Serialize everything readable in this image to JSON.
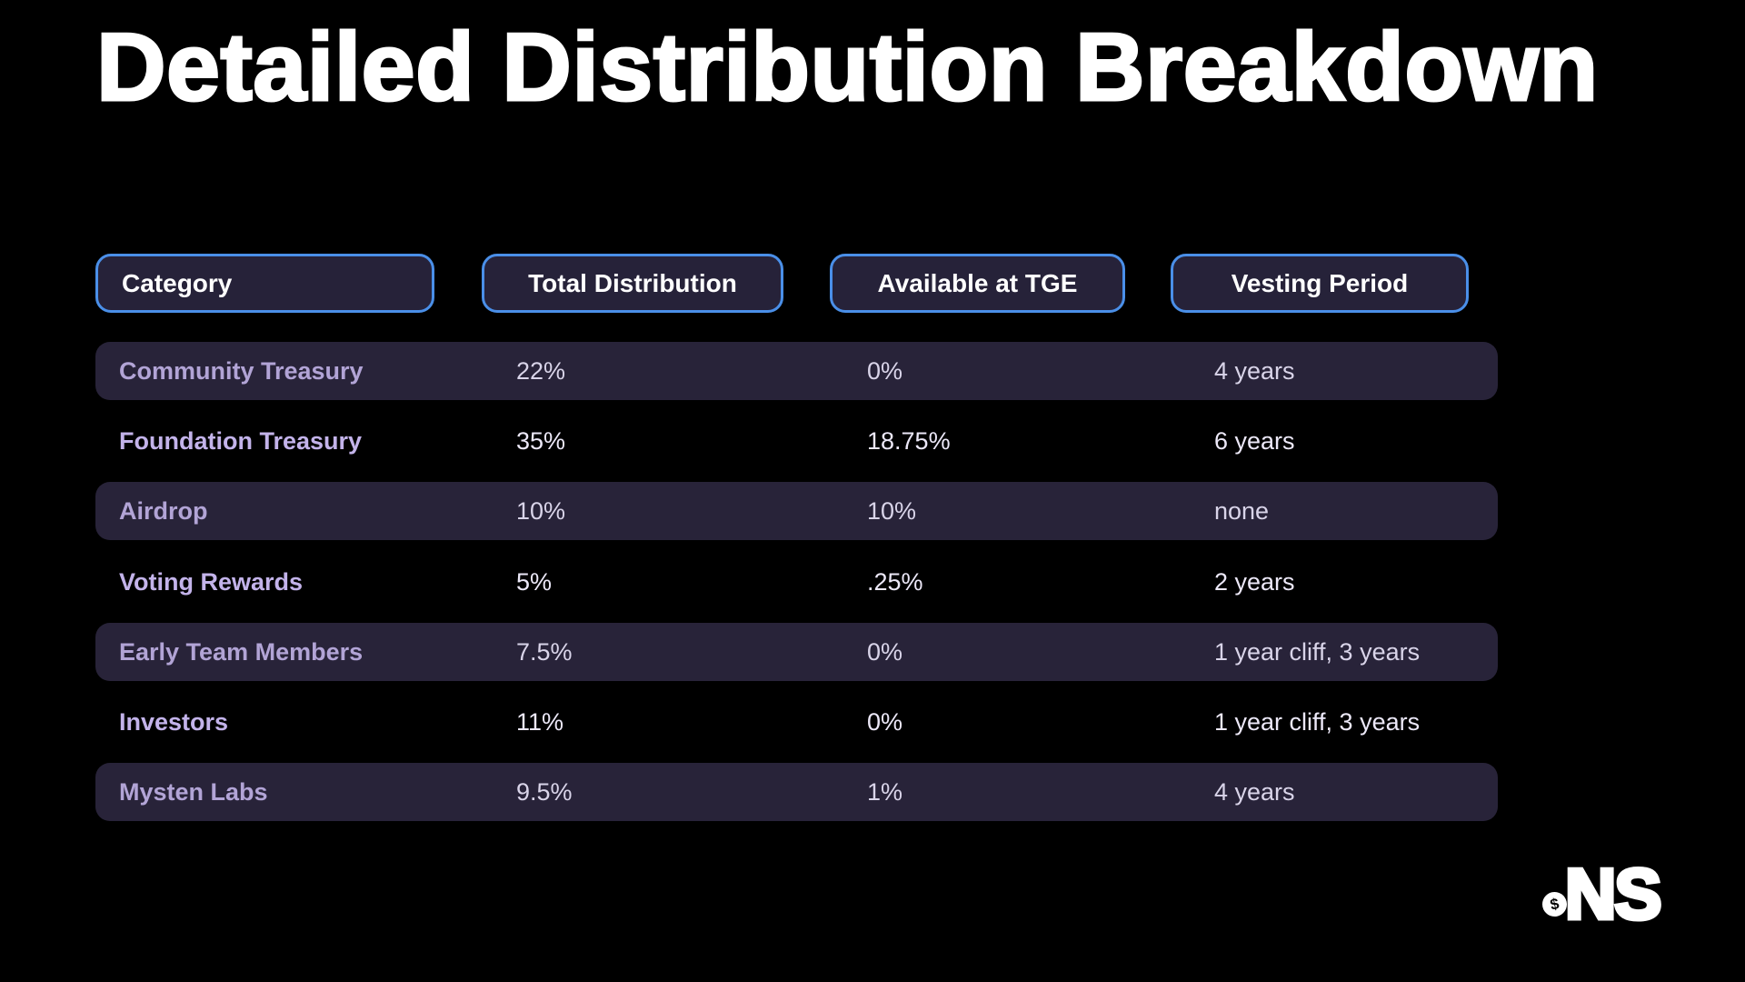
{
  "page": {
    "title": "Detailed Distribution Breakdown"
  },
  "chart_data": {
    "type": "table",
    "title": "Detailed Distribution Breakdown",
    "columns": [
      "Category",
      "Total Distribution",
      "Available at TGE",
      "Vesting Period"
    ],
    "rows": [
      {
        "category": "Community Treasury",
        "total_distribution": "22%",
        "available_at_tge": "0%",
        "vesting_period": "4 years"
      },
      {
        "category": "Foundation Treasury",
        "total_distribution": "35%",
        "available_at_tge": "18.75%",
        "vesting_period": "6 years"
      },
      {
        "category": "Airdrop",
        "total_distribution": "10%",
        "available_at_tge": "10%",
        "vesting_period": "none"
      },
      {
        "category": "Voting Rewards",
        "total_distribution": "5%",
        "available_at_tge": ".25%",
        "vesting_period": "2 years"
      },
      {
        "category": "Early Team Members",
        "total_distribution": "7.5%",
        "available_at_tge": "0%",
        "vesting_period": "1 year cliff, 3 years"
      },
      {
        "category": "Investors",
        "total_distribution": "11%",
        "available_at_tge": "0%",
        "vesting_period": "1 year cliff, 3 years"
      },
      {
        "category": "Mysten Labs",
        "total_distribution": "9.5%",
        "available_at_tge": "1%",
        "vesting_period": "4 years"
      }
    ]
  },
  "logo": {
    "text": "NS",
    "coin_symbol": "$"
  },
  "colors": {
    "title_text": "#ffffff",
    "header_border": "#4a8fe8",
    "header_fill": "#262239",
    "row_fill": "#282339",
    "category_text_on_striped_row": "#b2a4d6",
    "category_text_on_black_row": "#c3b3ea",
    "value_text_on_striped_row": "#d9d4e9",
    "value_text_on_black_row": "#ece8f8"
  }
}
